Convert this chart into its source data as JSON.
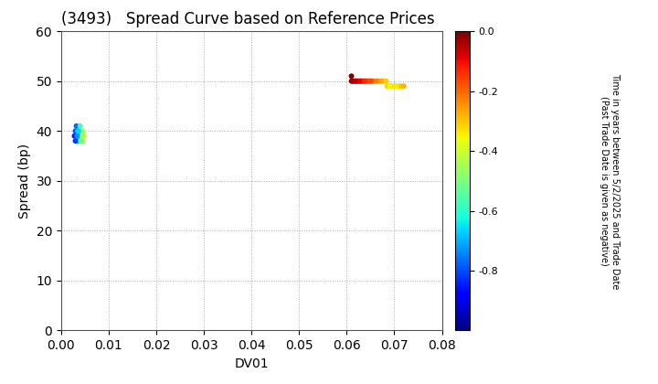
{
  "title": "(3493)   Spread Curve based on Reference Prices",
  "xlabel": "DV01",
  "ylabel": "Spread (bp)",
  "xlim": [
    0.0,
    0.08
  ],
  "ylim": [
    0,
    60
  ],
  "xticks": [
    0.0,
    0.01,
    0.02,
    0.03,
    0.04,
    0.05,
    0.06,
    0.07,
    0.08
  ],
  "yticks": [
    0,
    10,
    20,
    30,
    40,
    50,
    60
  ],
  "colorbar_label1": "Time in years between 5/2/2025 and Trade Date",
  "colorbar_label2": "(Past Trade Date is given as negative)",
  "colorbar_vmin": -1.0,
  "colorbar_vmax": 0.0,
  "colorbar_ticks": [
    0.0,
    -0.2,
    -0.4,
    -0.6,
    -0.8
  ],
  "cluster1": {
    "dv01": [
      0.0028,
      0.003,
      0.0032,
      0.0033,
      0.0034,
      0.0035,
      0.0036,
      0.0037,
      0.0038,
      0.0039,
      0.004,
      0.0041,
      0.0042,
      0.0043,
      0.0044,
      0.0045,
      0.0046,
      0.0048,
      0.003,
      0.0035,
      0.0032,
      0.0038,
      0.0042,
      0.0045,
      0.0036,
      0.004
    ],
    "spread": [
      39,
      40,
      38,
      39,
      40,
      38,
      39,
      40,
      41,
      39,
      40,
      38,
      39,
      40,
      39,
      40,
      38,
      39,
      38,
      39,
      41,
      40,
      38,
      39,
      40,
      41
    ],
    "time": [
      -0.85,
      -0.8,
      -0.78,
      -0.75,
      -0.72,
      -0.7,
      -0.68,
      -0.65,
      -0.62,
      -0.6,
      -0.58,
      -0.55,
      -0.52,
      -0.5,
      -0.48,
      -0.45,
      -0.43,
      -0.4,
      -0.82,
      -0.73,
      -0.77,
      -0.63,
      -0.53,
      -0.46,
      -0.67,
      -0.57
    ]
  },
  "cluster2": {
    "dv01": [
      0.061,
      0.0615,
      0.062,
      0.0625,
      0.063,
      0.0635,
      0.064,
      0.0645,
      0.065,
      0.0655,
      0.066,
      0.0665,
      0.067,
      0.0675,
      0.068,
      0.0685,
      0.069,
      0.0695,
      0.07,
      0.0705,
      0.071,
      0.0715,
      0.072,
      0.0613,
      0.0623,
      0.0633,
      0.0643,
      0.0653,
      0.0663,
      0.0673,
      0.0683,
      0.0693,
      0.0703,
      0.061,
      0.065,
      0.07,
      0.0618,
      0.0628,
      0.0638,
      0.0648
    ],
    "spread": [
      50,
      50,
      50,
      50,
      50,
      50,
      50,
      50,
      50,
      50,
      50,
      50,
      50,
      50,
      50,
      49,
      49,
      49,
      49,
      49,
      49,
      49,
      49,
      50,
      50,
      50,
      50,
      50,
      50,
      50,
      50,
      49,
      49,
      51,
      50,
      49,
      50,
      50,
      50,
      50
    ],
    "time": [
      -0.02,
      -0.04,
      -0.06,
      -0.08,
      -0.1,
      -0.12,
      -0.14,
      -0.16,
      -0.18,
      -0.2,
      -0.22,
      -0.24,
      -0.26,
      -0.28,
      -0.3,
      -0.32,
      -0.34,
      -0.36,
      -0.38,
      -0.35,
      -0.32,
      -0.3,
      -0.28,
      -0.03,
      -0.07,
      -0.11,
      -0.15,
      -0.19,
      -0.23,
      -0.27,
      -0.31,
      -0.35,
      -0.38,
      0.0,
      -0.17,
      -0.33,
      -0.05,
      -0.09,
      -0.13,
      -0.17
    ]
  },
  "point_size": 18,
  "background_color": "#ffffff",
  "grid_color": "#aaaaaa",
  "title_fontsize": 12,
  "axis_fontsize": 10
}
